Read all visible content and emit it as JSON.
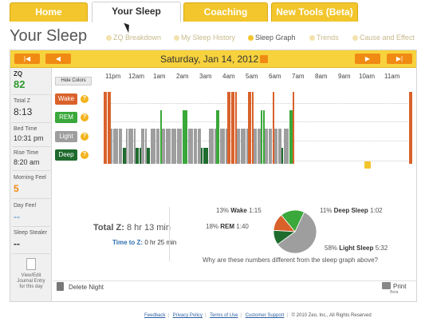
{
  "tabs": [
    {
      "label": "Home",
      "active": false
    },
    {
      "label": "Your Sleep",
      "active": true
    },
    {
      "label": "Coaching",
      "active": false
    },
    {
      "label": "New Tools (Beta)",
      "active": false
    }
  ],
  "page_title": "Your Sleep",
  "subnav": [
    "ZQ Breakdown",
    "My Sleep History",
    "Sleep Graph",
    "Trends",
    "Cause and Effect"
  ],
  "subnav_selected": "Sleep Graph",
  "date": "Saturday, Jan 14, 2012",
  "nav_icons": [
    "skip-back-icon",
    "back-icon",
    "forward-icon",
    "skip-forward-icon",
    "calendar-icon"
  ],
  "stats": {
    "zq_label": "ZQ",
    "zq_value": "82",
    "total_z_label": "Total Z",
    "total_z_value": "8:13",
    "bed_time_label": "Bed Time",
    "bed_time_value": "10:31 pm",
    "rise_time_label": "Rise Time",
    "rise_time_value": "8:20 am",
    "morning_feel_label": "Morning Feel",
    "morning_feel_value": "5",
    "day_feel_label": "Day Feel",
    "day_feel_value": "--",
    "sleep_stealer_label": "Sleep Stealer",
    "sleep_stealer_value": "--"
  },
  "journal_label": "View/Edit Journal Entry for this day",
  "graph": {
    "hide_colors_label": "Hide Colors",
    "stages": [
      {
        "label": "Wake",
        "color": "#d9622b"
      },
      {
        "label": "REM",
        "color": "#3aa83a"
      },
      {
        "label": "Light",
        "color": "#9e9e9e"
      },
      {
        "label": "Deep",
        "color": "#1f6b2e"
      }
    ],
    "help_glyph": "?",
    "hours": [
      "11pm",
      "12am",
      "1am",
      "2am",
      "3am",
      "4am",
      "5am",
      "6am",
      "7am",
      "8am",
      "9am",
      "10am",
      "11am"
    ]
  },
  "sleep_graph_data": [
    {
      "stage": "wake",
      "from": 0,
      "to": 4
    },
    {
      "stage": "light",
      "from": 4,
      "to": 10
    },
    {
      "stage": "deep",
      "from": 10,
      "to": 12
    },
    {
      "stage": "light",
      "from": 12,
      "to": 17
    },
    {
      "stage": "deep",
      "from": 17,
      "to": 20
    },
    {
      "stage": "light",
      "from": 20,
      "to": 23
    },
    {
      "stage": "deep",
      "from": 23,
      "to": 25
    },
    {
      "stage": "light",
      "from": 25,
      "to": 30
    },
    {
      "stage": "rem",
      "from": 30,
      "to": 31
    },
    {
      "stage": "light",
      "from": 31,
      "to": 42
    },
    {
      "stage": "rem",
      "from": 42,
      "to": 45
    },
    {
      "stage": "light",
      "from": 45,
      "to": 52
    },
    {
      "stage": "deep",
      "from": 52,
      "to": 56
    },
    {
      "stage": "light",
      "from": 56,
      "to": 60
    },
    {
      "stage": "rem",
      "from": 60,
      "to": 62
    },
    {
      "stage": "light",
      "from": 62,
      "to": 66
    },
    {
      "stage": "wake",
      "from": 66,
      "to": 71
    },
    {
      "stage": "light",
      "from": 71,
      "to": 77
    },
    {
      "stage": "wake",
      "from": 77,
      "to": 80
    },
    {
      "stage": "light",
      "from": 80,
      "to": 84
    },
    {
      "stage": "rem",
      "from": 84,
      "to": 86
    },
    {
      "stage": "light",
      "from": 86,
      "to": 90
    },
    {
      "stage": "wake",
      "from": 90,
      "to": 91
    },
    {
      "stage": "light",
      "from": 91,
      "to": 95
    },
    {
      "stage": "deep",
      "from": 95,
      "to": 96
    },
    {
      "stage": "light",
      "from": 96,
      "to": 99
    },
    {
      "stage": "rem",
      "from": 99,
      "to": 101
    },
    {
      "stage": "wake",
      "from": 101,
      "to": 102
    },
    {
      "stage": "wake",
      "from": 163,
      "to": 165
    }
  ],
  "summary": {
    "total_z_label": "Total Z:",
    "total_z_value": "8 hr 13 min",
    "time_to_z_label": "Time to Z:",
    "time_to_z_value": "0 hr 25 min"
  },
  "chart_data": {
    "type": "pie",
    "categories": [
      "Wake",
      "REM",
      "Light Sleep",
      "Deep Sleep"
    ],
    "values": [
      13,
      18,
      58,
      11
    ],
    "durations": [
      "1:15",
      "1:40",
      "5:32",
      "1:02"
    ],
    "colors": [
      "#d9622b",
      "#3aa83a",
      "#9e9e9e",
      "#1f6b2e"
    ],
    "labels": [
      {
        "pct": "13%",
        "name": "Wake",
        "time": "1:15"
      },
      {
        "pct": "18%",
        "name": "REM",
        "time": "1:40"
      },
      {
        "pct": "58%",
        "name": "Light Sleep",
        "time": "5:32"
      },
      {
        "pct": "11%",
        "name": "Deep Sleep",
        "time": "1:02"
      }
    ]
  },
  "question": "Why are these numbers different from the sleep graph above?",
  "delete_label": "Delete Night",
  "print_label": "Print",
  "beta_label": "Beta",
  "footer": {
    "links": [
      "Feedback",
      "Privacy Policy",
      "Terms of Use",
      "Customer Support"
    ],
    "copyright": "© 2010 Zeo, Inc., All Rights Reserved"
  }
}
